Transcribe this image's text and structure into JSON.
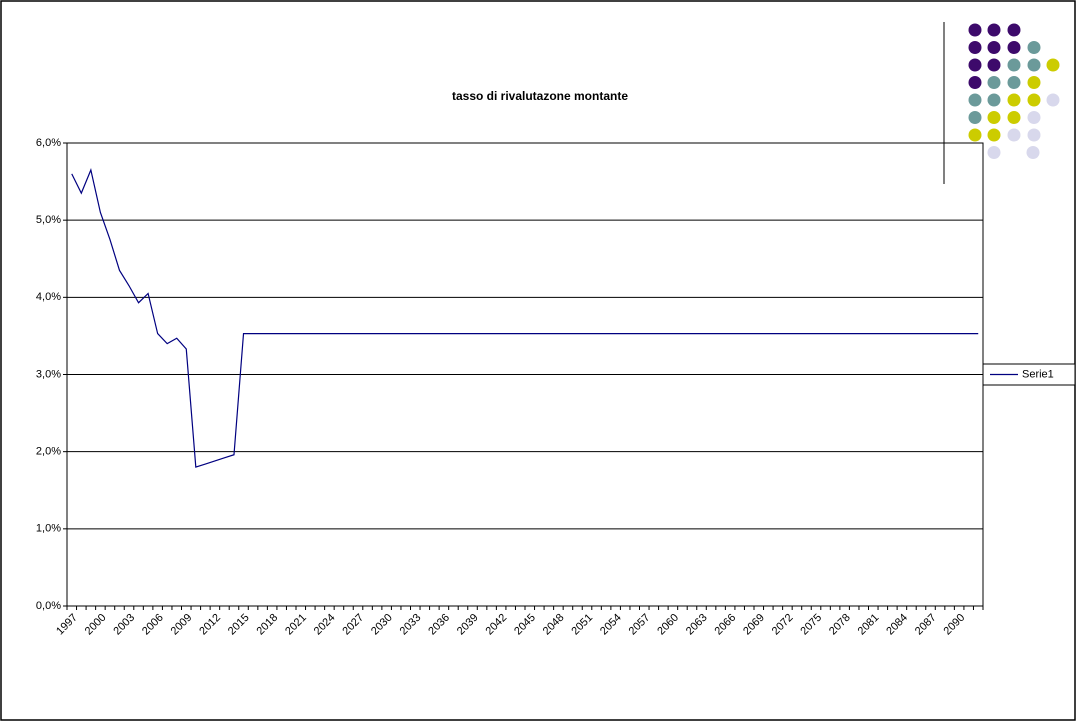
{
  "chart_data": {
    "type": "line",
    "title": "tasso di rivalutazone montante",
    "categories": [
      "1997",
      null,
      null,
      "2000",
      null,
      null,
      "2003",
      null,
      null,
      "2006",
      null,
      null,
      "2009",
      null,
      null,
      "2012",
      null,
      null,
      "2015",
      null,
      null,
      "2018",
      null,
      null,
      "2021",
      null,
      null,
      "2024",
      null,
      null,
      "2027",
      null,
      null,
      "2030",
      null,
      null,
      "2033",
      null,
      null,
      "2036",
      null,
      null,
      "2039",
      null,
      null,
      "2042",
      null,
      null,
      "2045",
      null,
      null,
      "2048",
      null,
      null,
      "2051",
      null,
      null,
      "2054",
      null,
      null,
      "2057",
      null,
      null,
      "2060",
      null,
      null,
      "2063",
      null,
      null,
      "2066",
      null,
      null,
      "2069",
      null,
      null,
      "2072",
      null,
      null,
      "2075",
      null,
      null,
      "2078",
      null,
      null,
      "2081",
      null,
      null,
      "2084",
      null,
      null,
      "2087",
      null,
      null,
      "2090",
      null,
      null
    ],
    "series": [
      {
        "name": "Serie1",
        "color": "#000080",
        "values": [
          5.6,
          5.35,
          5.65,
          5.1,
          4.75,
          4.35,
          4.15,
          3.93,
          4.05,
          3.53,
          3.4,
          3.47,
          3.33,
          1.8,
          1.84,
          1.88,
          1.92,
          1.96,
          3.53,
          3.53,
          3.53,
          3.53,
          3.53,
          3.53,
          3.53,
          3.53,
          3.53,
          3.53,
          3.53,
          3.53,
          3.53,
          3.53,
          3.53,
          3.53,
          3.53,
          3.53,
          3.53,
          3.53,
          3.53,
          3.53,
          3.53,
          3.53,
          3.53,
          3.53,
          3.53,
          3.53,
          3.53,
          3.53,
          3.53,
          3.53,
          3.53,
          3.53,
          3.53,
          3.53,
          3.53,
          3.53,
          3.53,
          3.53,
          3.53,
          3.53,
          3.53,
          3.53,
          3.53,
          3.53,
          3.53,
          3.53,
          3.53,
          3.53,
          3.53,
          3.53,
          3.53,
          3.53,
          3.53,
          3.53,
          3.53,
          3.53,
          3.53,
          3.53,
          3.53,
          3.53,
          3.53,
          3.53,
          3.53,
          3.53,
          3.53,
          3.53,
          3.53,
          3.53,
          3.53,
          3.53,
          3.53,
          3.53,
          3.53,
          3.53,
          3.53,
          3.53
        ]
      }
    ],
    "ylim": [
      0,
      6
    ],
    "yticks": [
      {
        "value": 0,
        "label": "0,0%"
      },
      {
        "value": 1,
        "label": "1,0%"
      },
      {
        "value": 2,
        "label": "2,0%"
      },
      {
        "value": 3,
        "label": "3,0%"
      },
      {
        "value": 4,
        "label": "4,0%"
      },
      {
        "value": 5,
        "label": "5,0%"
      },
      {
        "value": 6,
        "label": "6,0%"
      }
    ],
    "grid": true,
    "legend": "right"
  }
}
